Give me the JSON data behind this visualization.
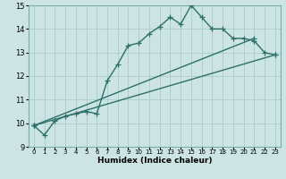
{
  "xlabel": "Humidex (Indice chaleur)",
  "ylabel": "",
  "bg_color": "#cce4e4",
  "grid_color": "#aacccc",
  "line_color": "#2d7068",
  "xlim": [
    -0.5,
    23.5
  ],
  "ylim": [
    9,
    15
  ],
  "xticks": [
    0,
    1,
    2,
    3,
    4,
    5,
    6,
    7,
    8,
    9,
    10,
    11,
    12,
    13,
    14,
    15,
    16,
    17,
    18,
    19,
    20,
    21,
    22,
    23
  ],
  "yticks": [
    9,
    10,
    11,
    12,
    13,
    14,
    15
  ],
  "line1_x": [
    0,
    1,
    2,
    3,
    4,
    5,
    6,
    7,
    8,
    9,
    10,
    11,
    12,
    13,
    14,
    15,
    16,
    17,
    18,
    19,
    20,
    21,
    22,
    23
  ],
  "line1_y": [
    9.9,
    9.5,
    10.1,
    10.3,
    10.4,
    10.5,
    10.4,
    11.8,
    12.5,
    13.3,
    13.4,
    13.8,
    14.1,
    14.5,
    14.2,
    15.0,
    14.5,
    14.0,
    14.0,
    13.6,
    13.6,
    13.5,
    13.0,
    12.9
  ],
  "line2_x": [
    0,
    23
  ],
  "line2_y": [
    9.9,
    12.9
  ],
  "line3_x": [
    0,
    21
  ],
  "line3_y": [
    9.9,
    13.6
  ],
  "marker_size": 4,
  "linewidth": 1.0
}
